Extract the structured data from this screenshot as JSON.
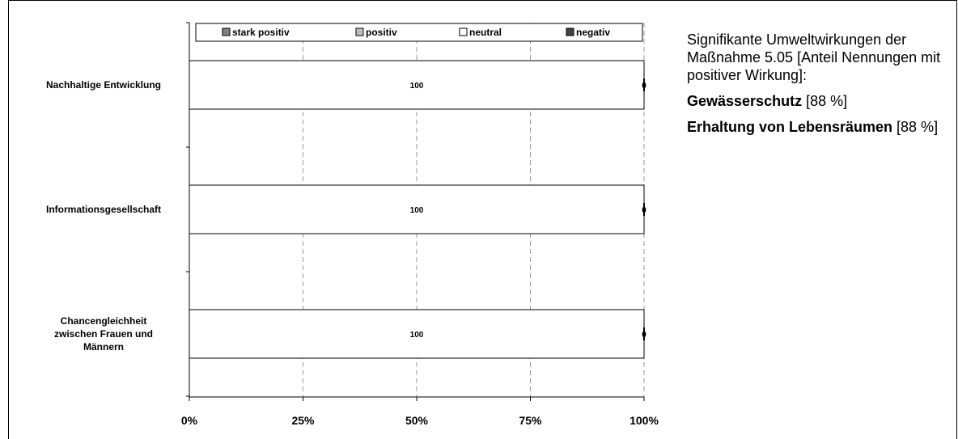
{
  "chart_data": {
    "type": "bar",
    "orientation": "horizontal",
    "stacked": true,
    "categories": [
      "Nachhaltige Entwicklung",
      "Informationsgesellschaft",
      "Chancengleichheit zwischen Frauen und Männern"
    ],
    "category_lines": [
      [
        "Nachhaltige Entwicklung"
      ],
      [
        "Informationsgesellschaft"
      ],
      [
        "Chancengleichheit",
        "zwischen Frauen und",
        "Männern"
      ]
    ],
    "series": [
      {
        "name": "stark positiv",
        "values": [
          0,
          0,
          0
        ],
        "color": "#808080"
      },
      {
        "name": "positiv",
        "values": [
          0,
          0,
          0
        ],
        "color": "#c0c0c0"
      },
      {
        "name": "neutral",
        "values": [
          100,
          100,
          100
        ],
        "color": "#ffffff"
      },
      {
        "name": "negativ",
        "values": [
          0,
          0,
          0
        ],
        "color": "#404040"
      }
    ],
    "data_labels": [
      [
        "100",
        "0"
      ],
      [
        "100",
        "0"
      ],
      [
        "100",
        "0"
      ]
    ],
    "xlim": [
      0,
      100
    ],
    "x_ticks": [
      "0%",
      "25%",
      "50%",
      "75%",
      "100%"
    ],
    "x_tick_values": [
      0,
      25,
      50,
      75,
      100
    ],
    "grid": "vertical dashed",
    "legend_position": "top"
  },
  "side_text": {
    "intro": "Signifikante Umweltwirkungen der Maßnahme 5.05 [Anteil Nennungen mit positiver Wirkung]:",
    "item1_bold": "Gewässerschutz",
    "item1_value": " [88 %]",
    "item2_bold": "Erhaltung von Lebensräumen",
    "item2_value": " [88 %]"
  }
}
